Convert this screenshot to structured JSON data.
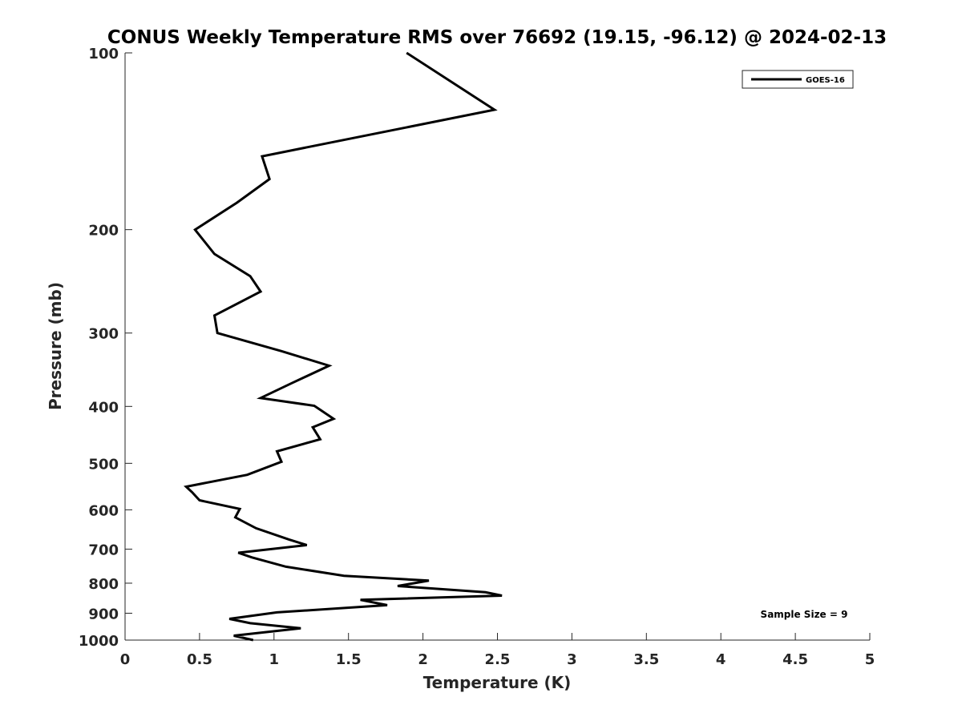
{
  "chart_data": {
    "type": "line",
    "title": "CONUS Weekly Temperature RMS over 76692 (19.15, -96.12) @ 2024-02-13",
    "xlabel": "Temperature (K)",
    "ylabel": "Pressure (mb)",
    "xlim": [
      0,
      5
    ],
    "ylim": [
      1000,
      100
    ],
    "yscale": "log",
    "y_reversed": true,
    "xticks": [
      "0",
      "0.5",
      "1",
      "1.5",
      "2",
      "2.5",
      "3",
      "3.5",
      "4",
      "4.5",
      "5"
    ],
    "yticks": [
      "100",
      "200",
      "300",
      "400",
      "500",
      "600",
      "700",
      "800",
      "900",
      "1000"
    ],
    "grid": false,
    "legend_position": "top-right",
    "annotation": "Sample Size = 9",
    "series": [
      {
        "name": "GOES-16",
        "color": "#000000",
        "points": [
          [
            1.89,
            100
          ],
          [
            2.48,
            125
          ],
          [
            0.92,
            150
          ],
          [
            0.97,
            164
          ],
          [
            0.75,
            180
          ],
          [
            0.47,
            200
          ],
          [
            0.6,
            220
          ],
          [
            0.84,
            240
          ],
          [
            0.91,
            255
          ],
          [
            0.6,
            280
          ],
          [
            0.62,
            300
          ],
          [
            1.05,
            322
          ],
          [
            1.37,
            341
          ],
          [
            1.12,
            365
          ],
          [
            0.91,
            387
          ],
          [
            1.27,
            399
          ],
          [
            1.4,
            420
          ],
          [
            1.26,
            434
          ],
          [
            1.31,
            455
          ],
          [
            1.02,
            477
          ],
          [
            1.05,
            497
          ],
          [
            0.82,
            523
          ],
          [
            0.41,
            548
          ],
          [
            0.45,
            560
          ],
          [
            0.5,
            578
          ],
          [
            0.77,
            598
          ],
          [
            0.74,
            618
          ],
          [
            0.88,
            645
          ],
          [
            1.1,
            674
          ],
          [
            1.22,
            689
          ],
          [
            0.76,
            710
          ],
          [
            0.85,
            723
          ],
          [
            1.08,
            750
          ],
          [
            1.47,
            777
          ],
          [
            2.04,
            792
          ],
          [
            1.83,
            809
          ],
          [
            2.42,
            829
          ],
          [
            2.53,
            840
          ],
          [
            1.58,
            854
          ],
          [
            1.76,
            872
          ],
          [
            1.02,
            897
          ],
          [
            0.7,
            920
          ],
          [
            0.84,
            936
          ],
          [
            1.18,
            955
          ],
          [
            0.73,
            983
          ],
          [
            0.86,
            1000
          ]
        ]
      }
    ]
  }
}
